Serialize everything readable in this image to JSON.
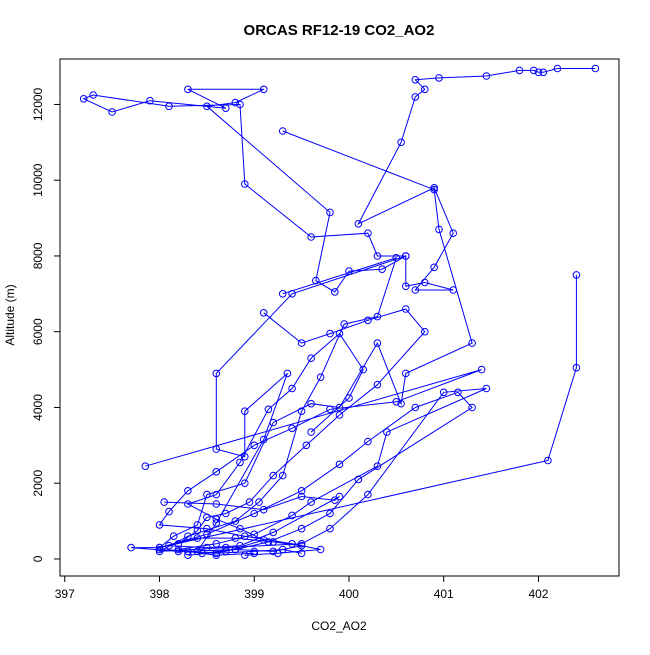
{
  "chart_data": {
    "type": "line",
    "title": "ORCAS RF12-19 CO2_AO2",
    "xlabel": "CO2_AO2",
    "ylabel": "Altitude (m)",
    "xlim": [
      396.95,
      402.85
    ],
    "ylim": [
      -450,
      13200
    ],
    "x_ticks": [
      397,
      398,
      399,
      400,
      401,
      402
    ],
    "y_ticks": [
      0,
      2000,
      4000,
      6000,
      8000,
      10000,
      12000
    ],
    "marker": "open-circle",
    "line_color": "#0000ff",
    "legend": "none",
    "grid": false,
    "series": [
      {
        "points": [
          [
            402.6,
            12950
          ],
          [
            402.2,
            12950
          ],
          [
            402.05,
            12850
          ],
          [
            402.0,
            12850
          ],
          [
            401.95,
            12900
          ],
          [
            401.8,
            12900
          ],
          [
            401.45,
            12750
          ],
          [
            400.95,
            12700
          ],
          [
            400.7,
            12650
          ],
          [
            400.8,
            12400
          ],
          [
            400.7,
            12200
          ],
          [
            400.55,
            11000
          ],
          [
            400.1,
            8850
          ],
          [
            400.9,
            9800
          ],
          [
            401.1,
            8600
          ],
          [
            400.9,
            7700
          ],
          [
            400.7,
            7100
          ],
          [
            401.1,
            7100
          ],
          [
            400.8,
            7300
          ],
          [
            400.6,
            7200
          ],
          [
            400.6,
            8000
          ],
          [
            400.3,
            8000
          ],
          [
            400.2,
            8600
          ],
          [
            399.6,
            8500
          ],
          [
            398.9,
            9900
          ],
          [
            398.85,
            12000
          ],
          [
            398.1,
            11950
          ],
          [
            397.3,
            12250
          ],
          [
            397.2,
            12150
          ],
          [
            397.5,
            11800
          ],
          [
            397.9,
            12100
          ],
          [
            398.7,
            11900
          ],
          [
            398.3,
            12400
          ],
          [
            399.1,
            12400
          ],
          [
            398.8,
            12050
          ],
          [
            398.5,
            11950
          ],
          [
            399.8,
            9150
          ],
          [
            399.65,
            7350
          ],
          [
            399.85,
            7050
          ],
          [
            400.0,
            7600
          ],
          [
            400.35,
            7650
          ],
          [
            400.6,
            8000
          ],
          [
            399.4,
            7000
          ],
          [
            398.6,
            4900
          ],
          [
            398.6,
            2900
          ],
          [
            398.9,
            2700
          ],
          [
            398.9,
            3900
          ],
          [
            399.35,
            4900
          ],
          [
            399.1,
            3150
          ],
          [
            398.6,
            950
          ],
          [
            398.4,
            200
          ],
          [
            398.0,
            250
          ]
        ]
      },
      {
        "points": [
          [
            399.3,
            11300
          ],
          [
            400.9,
            9750
          ],
          [
            400.95,
            8700
          ],
          [
            401.3,
            5700
          ],
          [
            400.6,
            4900
          ],
          [
            400.55,
            4100
          ],
          [
            400.3,
            5700
          ],
          [
            399.9,
            4000
          ],
          [
            399.6,
            4100
          ],
          [
            399.2,
            3600
          ],
          [
            398.9,
            2000
          ],
          [
            398.5,
            1700
          ],
          [
            398.4,
            900
          ],
          [
            398.15,
            600
          ],
          [
            398.0,
            300
          ],
          [
            397.7,
            300
          ],
          [
            398.2,
            200
          ],
          [
            398.6,
            150
          ],
          [
            399.0,
            200
          ],
          [
            399.3,
            250
          ],
          [
            399.5,
            150
          ]
        ]
      },
      {
        "points": [
          [
            399.3,
            7000
          ],
          [
            400.5,
            7950
          ],
          [
            400.3,
            6400
          ],
          [
            399.95,
            6200
          ],
          [
            399.7,
            4800
          ],
          [
            399.5,
            3900
          ],
          [
            399.3,
            2200
          ],
          [
            399.05,
            1500
          ],
          [
            398.8,
            1000
          ],
          [
            398.3,
            600
          ],
          [
            398.0,
            200
          ],
          [
            398.7,
            300
          ],
          [
            399.5,
            400
          ],
          [
            399.8,
            800
          ],
          [
            400.2,
            1700
          ],
          [
            401.0,
            4400
          ],
          [
            401.45,
            4500
          ],
          [
            400.4,
            3350
          ],
          [
            400.3,
            2450
          ],
          [
            399.6,
            1500
          ],
          [
            399.4,
            1150
          ],
          [
            399.0,
            650
          ],
          [
            398.6,
            400
          ],
          [
            398.2,
            250
          ]
        ]
      },
      {
        "points": [
          [
            402.4,
            7500
          ],
          [
            402.4,
            5050
          ],
          [
            402.1,
            2600
          ],
          [
            398.0,
            300
          ],
          [
            398.5,
            650
          ],
          [
            399.0,
            1200
          ],
          [
            399.5,
            1800
          ],
          [
            399.9,
            2500
          ],
          [
            400.2,
            3100
          ],
          [
            400.7,
            4000
          ],
          [
            401.15,
            4400
          ],
          [
            401.3,
            4000
          ],
          [
            400.1,
            2100
          ],
          [
            399.8,
            1200
          ],
          [
            399.5,
            800
          ],
          [
            399.15,
            450
          ],
          [
            398.8,
            250
          ],
          [
            398.45,
            150
          ]
        ]
      },
      {
        "points": [
          [
            397.85,
            2450
          ],
          [
            401.4,
            5000
          ],
          [
            400.5,
            4150
          ],
          [
            399.8,
            3950
          ],
          [
            399.4,
            3450
          ],
          [
            399.0,
            3000
          ],
          [
            398.6,
            2300
          ],
          [
            398.3,
            1800
          ],
          [
            398.1,
            1250
          ],
          [
            398.0,
            900
          ],
          [
            398.5,
            800
          ],
          [
            398.9,
            600
          ],
          [
            399.4,
            400
          ],
          [
            399.7,
            250
          ],
          [
            399.25,
            150
          ],
          [
            398.9,
            100
          ]
        ]
      },
      {
        "points": [
          [
            399.6,
            3350
          ],
          [
            400.0,
            4250
          ],
          [
            400.15,
            5000
          ],
          [
            399.9,
            5950
          ],
          [
            399.6,
            5300
          ],
          [
            399.4,
            4500
          ],
          [
            399.15,
            3950
          ],
          [
            398.85,
            2550
          ],
          [
            398.6,
            1700
          ],
          [
            398.3,
            1450
          ],
          [
            398.6,
            1050
          ],
          [
            398.85,
            800
          ],
          [
            399.1,
            500
          ],
          [
            398.7,
            200
          ],
          [
            398.3,
            100
          ]
        ]
      },
      {
        "points": [
          [
            399.1,
            6500
          ],
          [
            399.5,
            5700
          ],
          [
            399.8,
            5950
          ],
          [
            400.2,
            6300
          ],
          [
            400.6,
            6600
          ],
          [
            400.8,
            6000
          ],
          [
            400.3,
            4600
          ],
          [
            399.9,
            3800
          ],
          [
            399.55,
            3000
          ],
          [
            399.2,
            2200
          ],
          [
            398.95,
            1500
          ],
          [
            398.7,
            1200
          ],
          [
            398.5,
            1100
          ],
          [
            398.4,
            750
          ],
          [
            398.2,
            400
          ]
        ]
      },
      {
        "points": [
          [
            398.05,
            1500
          ],
          [
            398.6,
            1450
          ],
          [
            399.1,
            1300
          ],
          [
            399.5,
            1650
          ],
          [
            399.85,
            1550
          ],
          [
            399.9,
            1650
          ],
          [
            399.2,
            700
          ],
          [
            398.85,
            350
          ],
          [
            398.5,
            300
          ],
          [
            398.1,
            350
          ],
          [
            398.4,
            550
          ],
          [
            398.8,
            550
          ],
          [
            399.2,
            450
          ],
          [
            399.5,
            350
          ],
          [
            399.2,
            200
          ],
          [
            398.8,
            250
          ],
          [
            398.3,
            200
          ],
          [
            398.6,
            100
          ],
          [
            399.0,
            150
          ]
        ]
      }
    ]
  }
}
